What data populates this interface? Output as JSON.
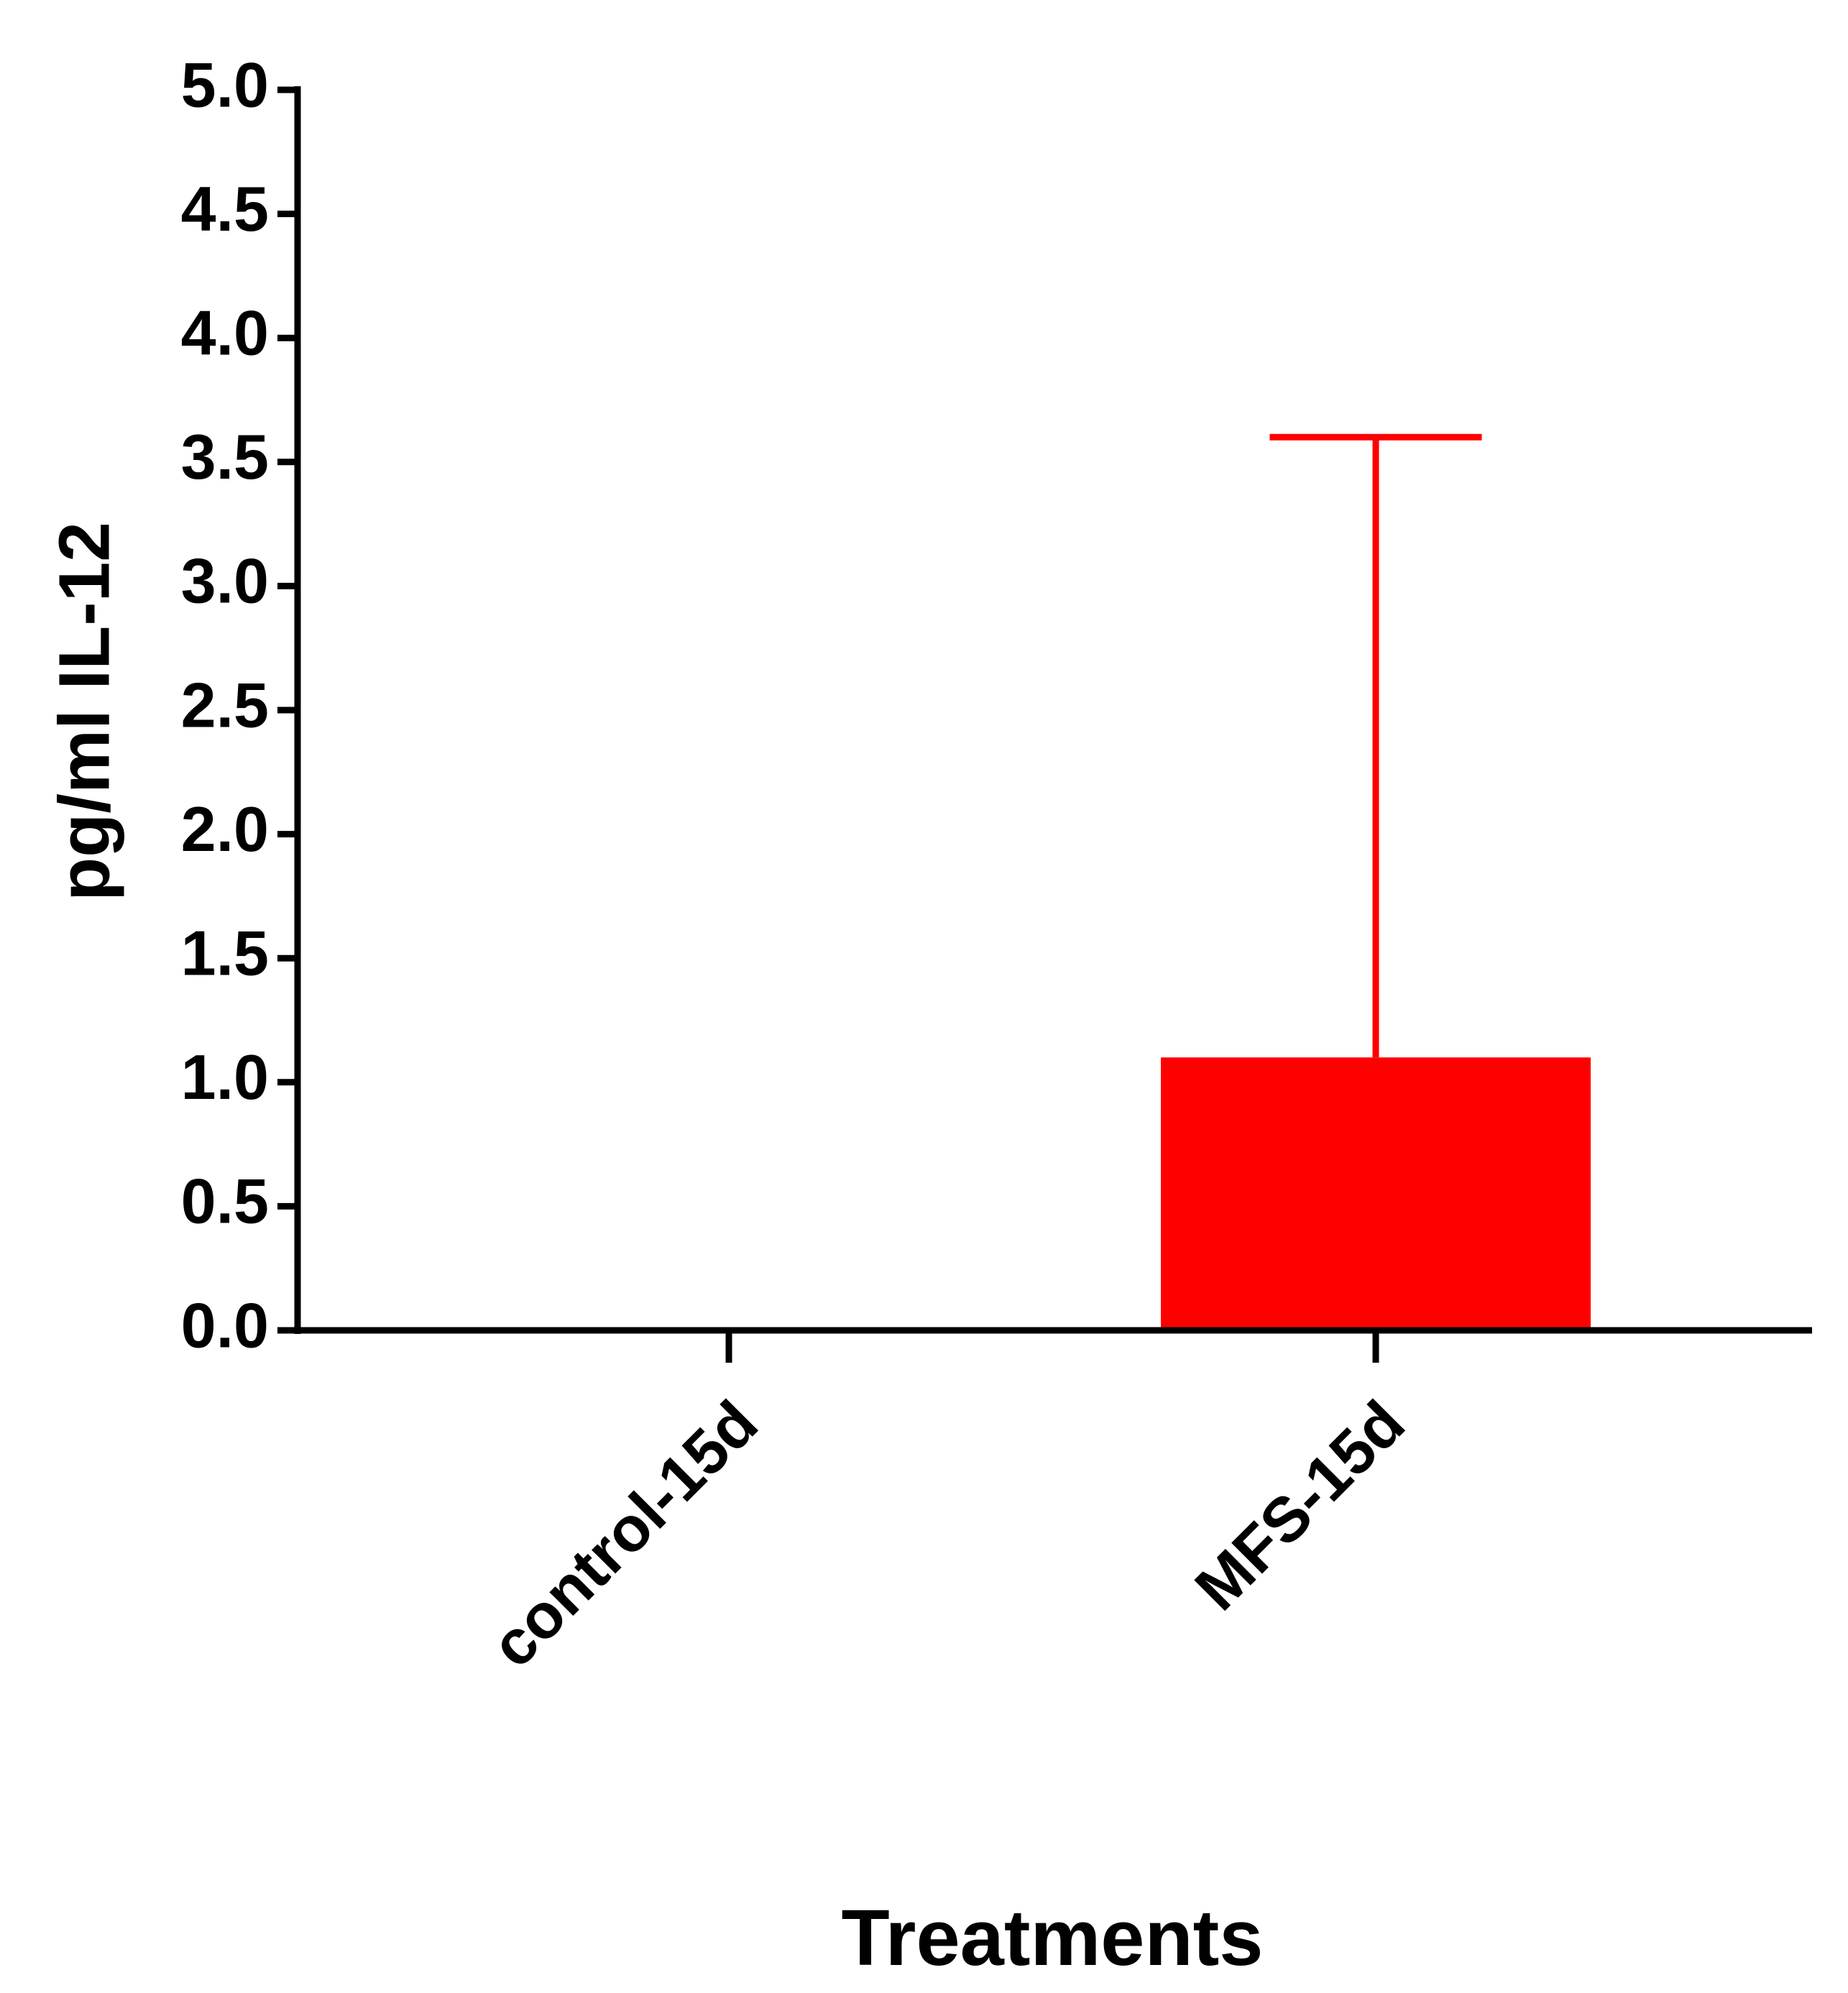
{
  "chart_data": {
    "type": "bar",
    "y_label": "pg/ml IL-12",
    "x_label": "Treatments",
    "categories": [
      "control-15d",
      "MFS-15d"
    ],
    "values": [
      0,
      1.1
    ],
    "errors": [
      0,
      2.5
    ],
    "color": "#ff0000",
    "ylim": [
      0,
      5
    ],
    "yticks": [
      {
        "value": 0,
        "label": "0.0"
      },
      {
        "value": 0.5,
        "label": "0.5"
      },
      {
        "value": 1,
        "label": "1.0"
      },
      {
        "value": 1.5,
        "label": "1.5"
      },
      {
        "value": 2,
        "label": "2.0"
      },
      {
        "value": 2.5,
        "label": "2.5"
      },
      {
        "value": 3,
        "label": "3.0"
      },
      {
        "value": 3.5,
        "label": "3.5"
      },
      {
        "value": 4,
        "label": "4.0"
      },
      {
        "value": 4.5,
        "label": "4.5"
      },
      {
        "value": 5,
        "label": "5.0"
      }
    ]
  }
}
